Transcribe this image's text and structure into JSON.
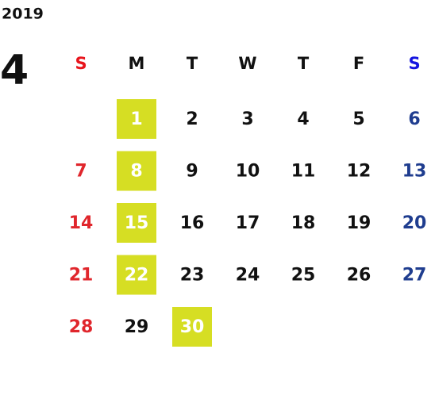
{
  "calendar": {
    "year": "2019",
    "month": "4",
    "weekdays": [
      "S",
      "M",
      "T",
      "W",
      "T",
      "F",
      "S"
    ],
    "weeks": [
      [
        null,
        {
          "day": 1,
          "highlight": true
        },
        {
          "day": 2
        },
        {
          "day": 3
        },
        {
          "day": 4
        },
        {
          "day": 5
        },
        {
          "day": 6
        }
      ],
      [
        {
          "day": 7
        },
        {
          "day": 8,
          "highlight": true
        },
        {
          "day": 9
        },
        {
          "day": 10
        },
        {
          "day": 11
        },
        {
          "day": 12
        },
        {
          "day": 13
        }
      ],
      [
        {
          "day": 14
        },
        {
          "day": 15,
          "highlight": true
        },
        {
          "day": 16
        },
        {
          "day": 17
        },
        {
          "day": 18
        },
        {
          "day": 19
        },
        {
          "day": 20
        }
      ],
      [
        {
          "day": 21
        },
        {
          "day": 22,
          "highlight": true
        },
        {
          "day": 23
        },
        {
          "day": 24
        },
        {
          "day": 25
        },
        {
          "day": 26
        },
        {
          "day": 27
        }
      ],
      [
        {
          "day": 28
        },
        {
          "day": 29
        },
        {
          "day": 30,
          "highlight": true
        },
        null,
        null,
        null,
        null
      ]
    ]
  }
}
